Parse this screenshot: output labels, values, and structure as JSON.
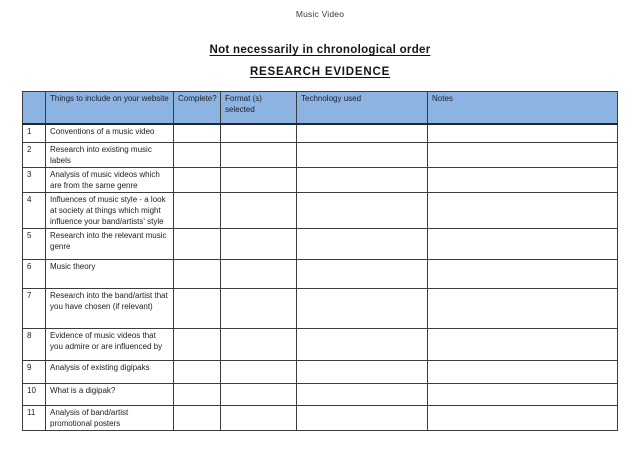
{
  "page": {
    "title": "Music Video",
    "heading1": "Not necessarily in chronological order",
    "heading2": "RESEARCH EVIDENCE"
  },
  "table": {
    "header_bg_color": "#8db3e2",
    "columns": [
      "",
      "Things to include on your website",
      "Complete?",
      "Format (s) selected",
      "Technology used",
      "Notes"
    ],
    "rows": [
      {
        "num": "1",
        "item": "Conventions of a music video",
        "complete": "",
        "format": "",
        "technology": "",
        "notes": ""
      },
      {
        "num": "2",
        "item": "Research into existing music labels",
        "complete": "",
        "format": "",
        "technology": "",
        "notes": ""
      },
      {
        "num": "3",
        "item": "Analysis of music videos which are from the same genre",
        "complete": "",
        "format": "",
        "technology": "",
        "notes": ""
      },
      {
        "num": "4",
        "item": "Influences of music style - a look at society at things which might influence your band/artists' style",
        "complete": "",
        "format": "",
        "technology": "",
        "notes": ""
      },
      {
        "num": "5",
        "item": "Research into the relevant music genre",
        "complete": "",
        "format": "",
        "technology": "",
        "notes": ""
      },
      {
        "num": "6",
        "item": "Music theory",
        "complete": "",
        "format": "",
        "technology": "",
        "notes": ""
      },
      {
        "num": "7",
        "item": "Research into the band/artist that you have chosen (if relevant)",
        "complete": "",
        "format": "",
        "technology": "",
        "notes": ""
      },
      {
        "num": "8",
        "item": "Evidence of music videos that you admire or are influenced by",
        "complete": "",
        "format": "",
        "technology": "",
        "notes": ""
      },
      {
        "num": "9",
        "item": "Analysis of existing digipaks",
        "complete": "",
        "format": "",
        "technology": "",
        "notes": ""
      },
      {
        "num": "10",
        "item": "What is a digipak?",
        "complete": "",
        "format": "",
        "technology": "",
        "notes": ""
      },
      {
        "num": "11",
        "item": "Analysis of band/artist promotional posters",
        "complete": "",
        "format": "",
        "technology": "",
        "notes": ""
      }
    ]
  }
}
